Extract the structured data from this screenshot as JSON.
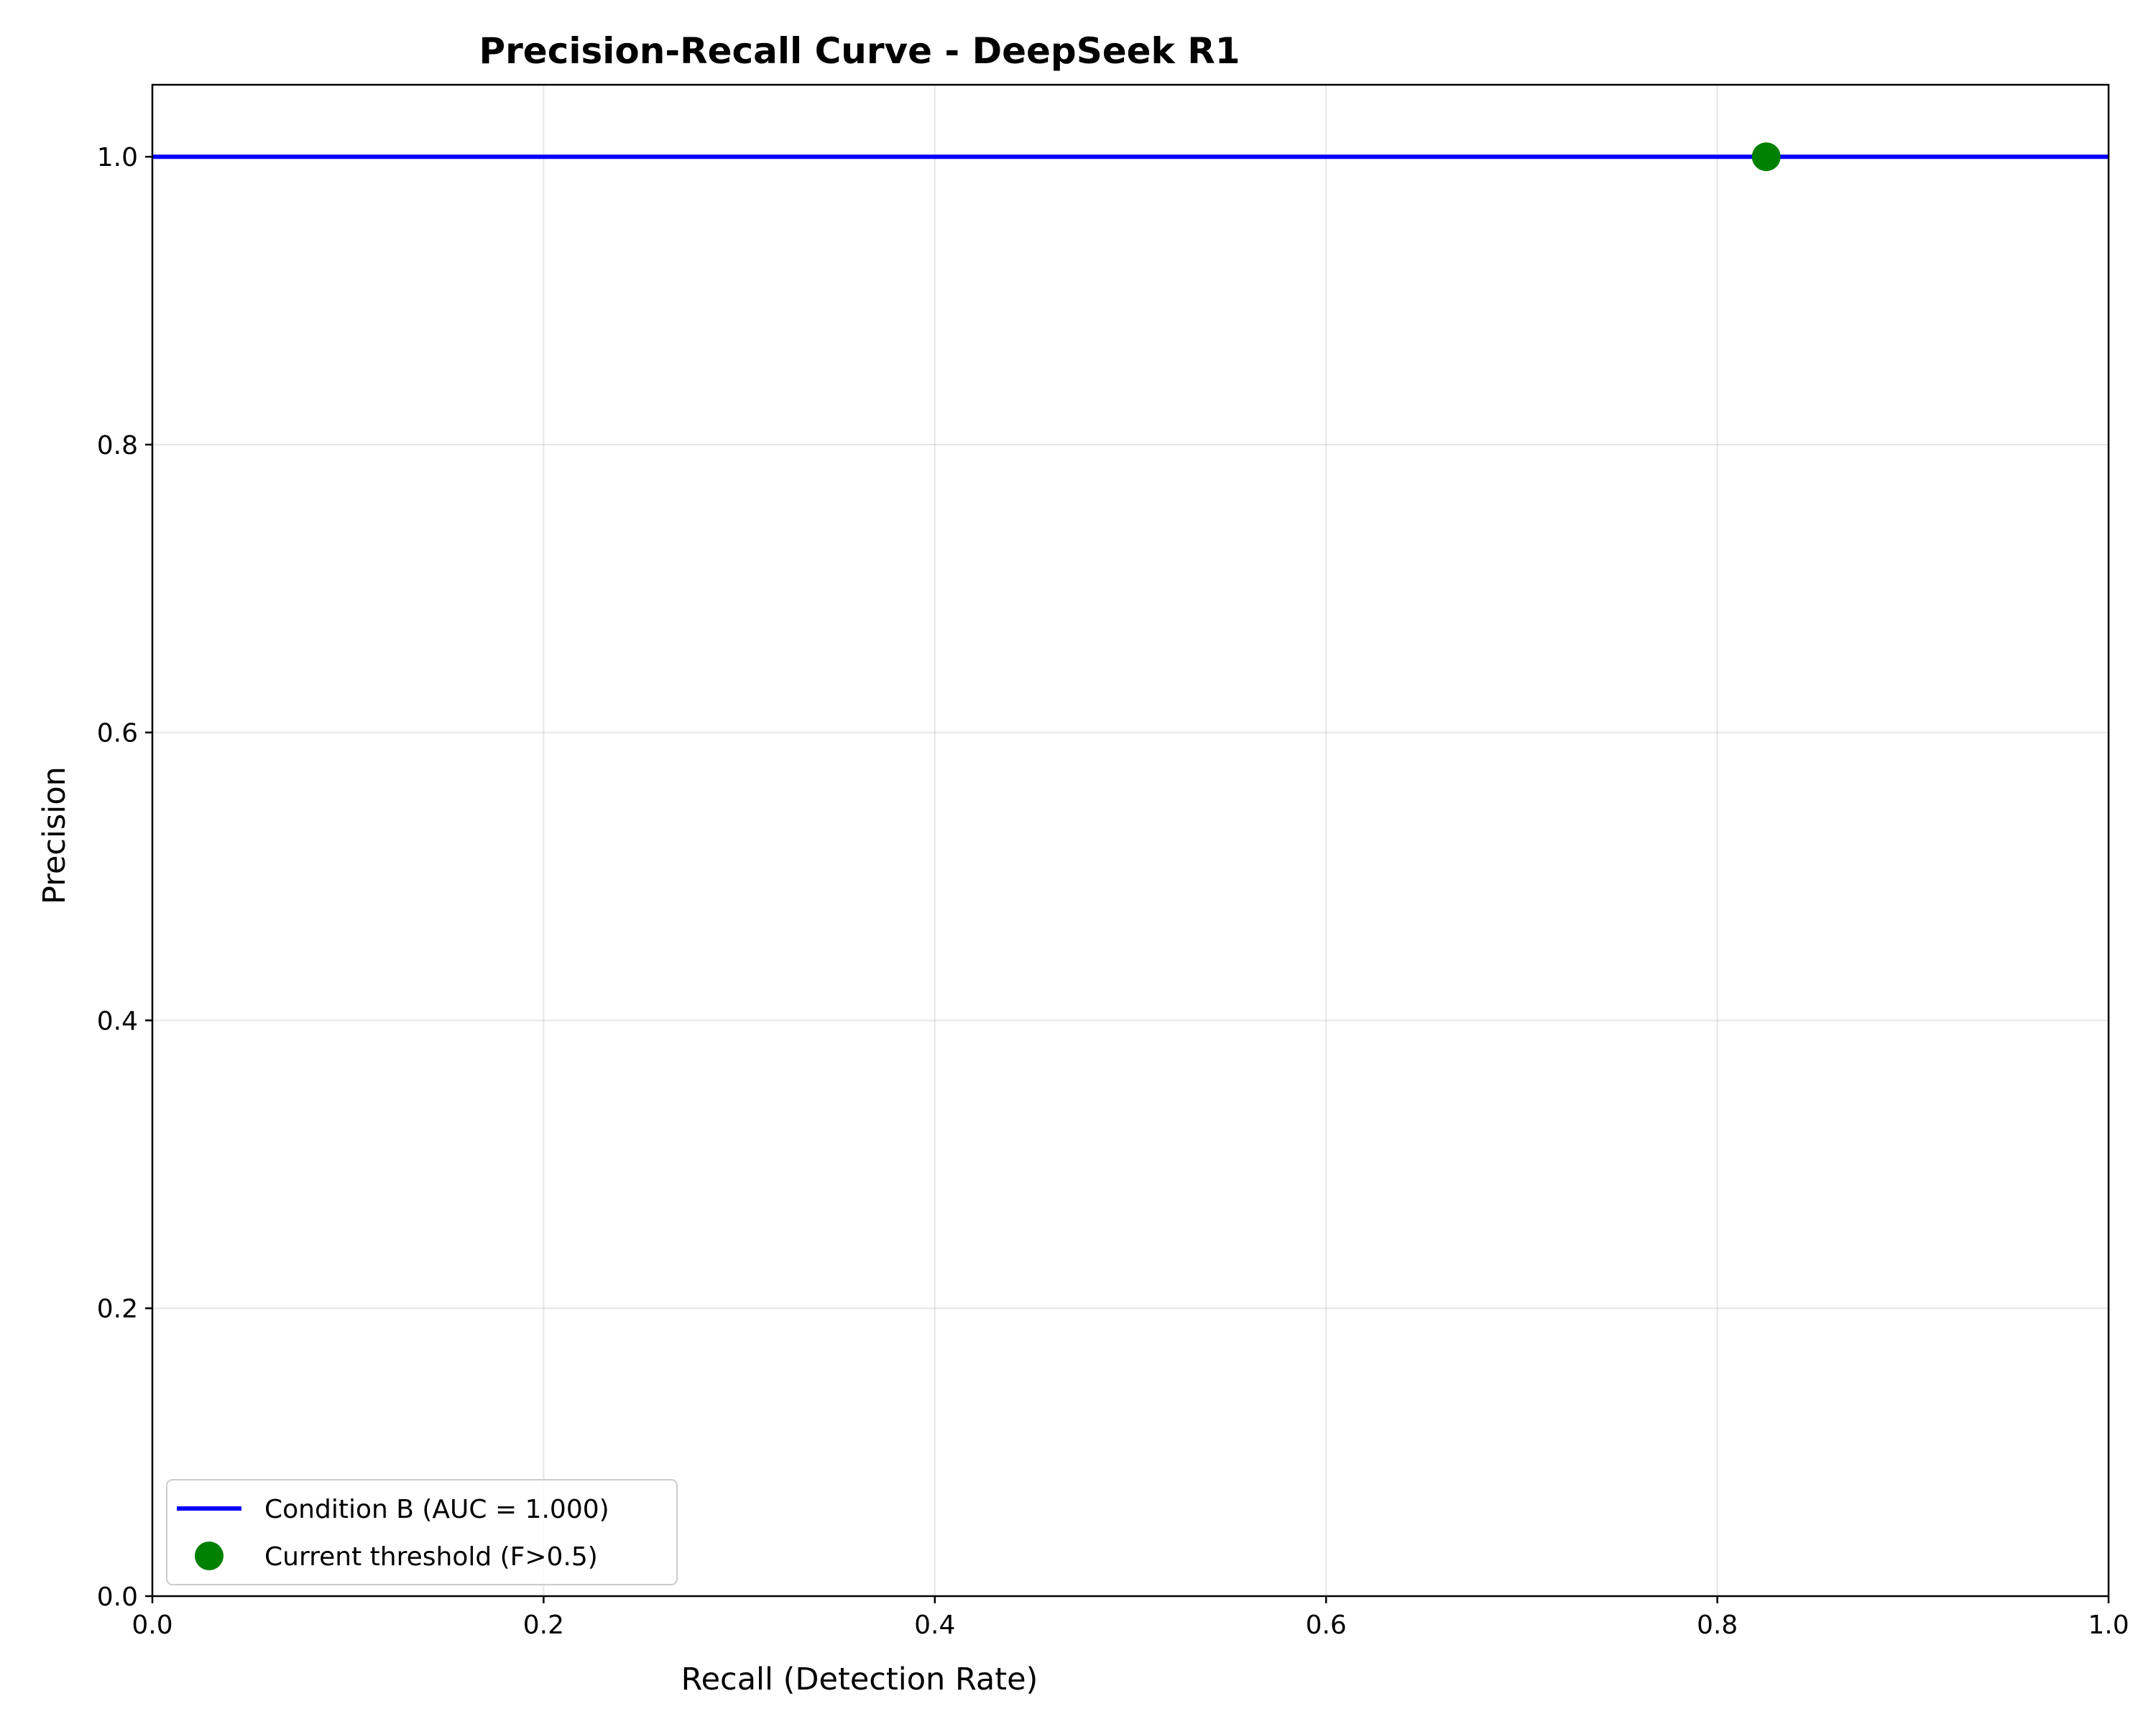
{
  "chart_data": {
    "type": "line",
    "title": "Precision-Recall Curve - DeepSeek R1",
    "xlabel": "Recall (Detection Rate)",
    "ylabel": "Precision",
    "xlim": [
      0.0,
      1.0
    ],
    "ylim": [
      0.0,
      1.05
    ],
    "xticks": [
      "0.0",
      "0.2",
      "0.4",
      "0.6",
      "0.8",
      "1.0"
    ],
    "yticks": [
      "0.0",
      "0.2",
      "0.4",
      "0.6",
      "0.8",
      "1.0"
    ],
    "grid": true,
    "legend_position": "lower-left",
    "series": [
      {
        "name": "Condition B (AUC = 1.000)",
        "kind": "line",
        "color": "#0000ff",
        "x": [
          0.0,
          1.0
        ],
        "y": [
          1.0,
          1.0
        ]
      },
      {
        "name": "Current threshold (F>0.5)",
        "kind": "point",
        "color": "#008000",
        "x": [
          0.825
        ],
        "y": [
          1.0
        ]
      }
    ]
  }
}
